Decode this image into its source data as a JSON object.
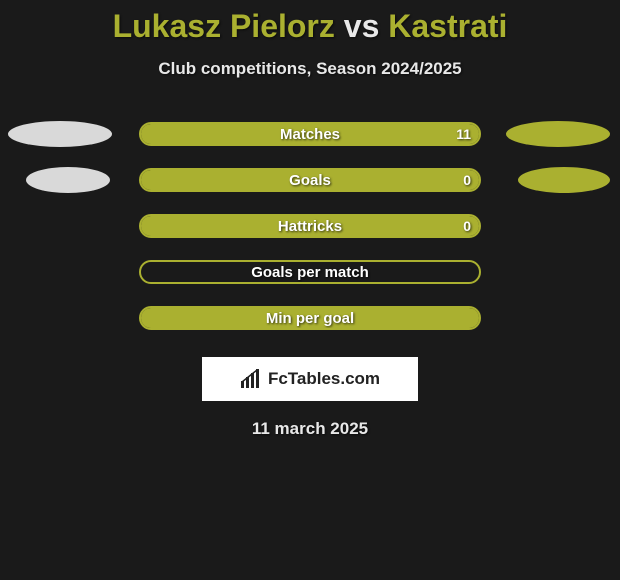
{
  "title": {
    "player1": "Lukasz Pielorz",
    "vs": "vs",
    "player2": "Kastrati"
  },
  "subtitle": "Club competitions, Season 2024/2025",
  "colors": {
    "player1": "#d9d9d9",
    "player2": "#aab030",
    "bar_fill": "#aab030",
    "bar_border": "#aab030",
    "background": "#1a1a1a",
    "text": "#e8e8e8"
  },
  "stats": [
    {
      "label": "Matches",
      "value": "11",
      "fill_pct": 100,
      "show_left_ellipse": true,
      "show_right_ellipse": true
    },
    {
      "label": "Goals",
      "value": "0",
      "fill_pct": 100,
      "show_left_ellipse": true,
      "show_right_ellipse": true
    },
    {
      "label": "Hattricks",
      "value": "0",
      "fill_pct": 100,
      "show_left_ellipse": false,
      "show_right_ellipse": false
    },
    {
      "label": "Goals per match",
      "value": "",
      "fill_pct": 0,
      "show_left_ellipse": false,
      "show_right_ellipse": false
    },
    {
      "label": "Min per goal",
      "value": "",
      "fill_pct": 100,
      "show_left_ellipse": false,
      "show_right_ellipse": false
    }
  ],
  "logo_text": "FcTables.com",
  "date": "11 march 2025"
}
